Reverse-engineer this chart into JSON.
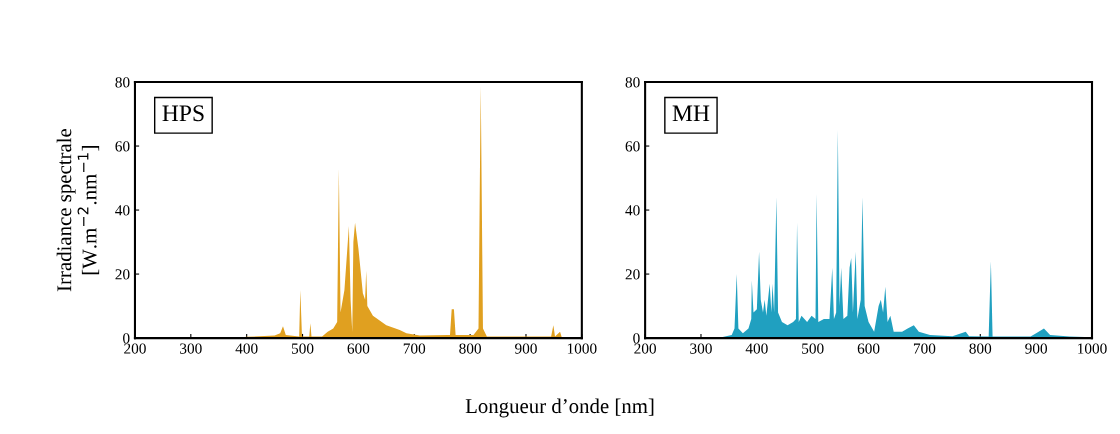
{
  "chart_data": [
    {
      "type": "area",
      "title": "HPS",
      "ylabel": "Irradiance spectrale\n[W.m$^{−2}$.nm$^{−1}$]",
      "xlabel": "Longueur d’onde [nm]",
      "xlim": [
        200,
        1000
      ],
      "xticks": [
        200,
        300,
        400,
        500,
        600,
        700,
        800,
        900,
        1000
      ],
      "ylim": [
        0,
        80
      ],
      "yticks": [
        0,
        20,
        40,
        60,
        80
      ],
      "grid": false,
      "x": [
        200,
        380,
        400,
        450,
        460,
        465,
        470,
        494,
        496,
        499,
        512,
        514,
        516,
        535,
        545,
        555,
        562,
        565,
        568,
        575,
        583,
        586,
        589,
        591,
        594,
        600,
        608,
        612,
        614,
        616,
        626,
        650,
        674,
        686,
        710,
        760,
        764,
        767,
        771,
        774,
        806,
        815,
        819,
        823,
        830,
        945,
        949,
        952,
        961,
        964,
        1000
      ],
      "series": [
        {
          "color": "#e0a020",
          "values": [
            0,
            0,
            0.4,
            0.8,
            1.5,
            3.7,
            1,
            0.5,
            15,
            0.5,
            0.5,
            4.6,
            0.5,
            0.5,
            2,
            3,
            5,
            53,
            8,
            15,
            35,
            12,
            2,
            30,
            36,
            28,
            14,
            12,
            21,
            10,
            7,
            4,
            2.5,
            1.5,
            0.8,
            1,
            1,
            9,
            9,
            1,
            1,
            3,
            79,
            3,
            0.5,
            0.5,
            4,
            0.5,
            2,
            0.3,
            0.3
          ]
        }
      ]
    },
    {
      "type": "area",
      "title": "MH",
      "xlim": [
        200,
        1000
      ],
      "xticks": [
        200,
        300,
        400,
        500,
        600,
        700,
        800,
        900,
        1000
      ],
      "ylim": [
        0,
        80
      ],
      "yticks": [
        0,
        20,
        40,
        60,
        80
      ],
      "grid": false,
      "x": [
        200,
        330,
        355,
        360,
        364,
        367,
        375,
        385,
        390,
        391,
        394,
        400,
        404,
        407,
        411,
        414,
        417,
        423,
        426,
        428,
        431,
        435,
        438,
        445,
        455,
        465,
        470,
        472,
        475,
        480,
        490,
        498,
        505,
        507,
        510,
        520,
        530,
        535,
        538,
        542,
        545,
        548,
        551,
        555,
        562,
        566,
        569,
        572,
        577,
        580,
        586,
        589,
        593,
        600,
        610,
        618,
        622,
        626,
        630,
        634,
        639,
        645,
        660,
        670,
        681,
        690,
        710,
        750,
        774,
        780,
        815,
        819,
        822,
        890,
        900,
        914,
        925,
        960,
        1000
      ],
      "series": [
        {
          "color": "#20a0c0",
          "values": [
            0,
            0,
            1,
            3,
            20,
            3,
            1.5,
            3,
            6,
            18,
            8,
            9,
            27,
            12,
            8,
            12,
            7,
            17,
            8,
            17,
            8,
            44,
            8,
            5,
            4,
            5,
            6,
            36,
            5,
            7,
            5,
            7,
            6,
            45,
            5,
            6,
            6,
            22,
            6,
            8,
            65,
            10,
            22,
            6,
            7,
            22,
            25,
            8,
            27,
            6,
            12,
            44,
            10,
            5,
            2,
            10,
            12,
            8,
            16,
            5,
            7,
            2,
            2,
            3,
            4,
            2,
            1,
            0.6,
            2,
            0.6,
            0.5,
            24,
            0.5,
            0.5,
            1.5,
            3,
            1,
            0.5,
            0.3
          ]
        }
      ]
    }
  ]
}
